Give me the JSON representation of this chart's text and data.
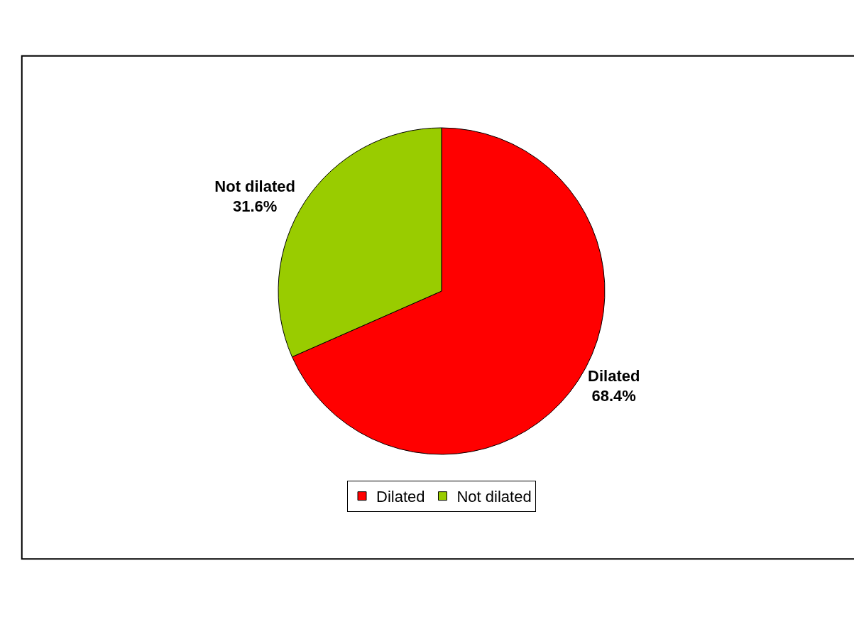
{
  "chart_data": {
    "type": "pie",
    "categories": [
      "Dilated",
      "Not dilated"
    ],
    "values": [
      68.4,
      31.6
    ],
    "colors": [
      "#ff0000",
      "#99cc00"
    ],
    "value_labels": [
      "68.4%",
      "31.6%"
    ],
    "legend": "bottom"
  }
}
